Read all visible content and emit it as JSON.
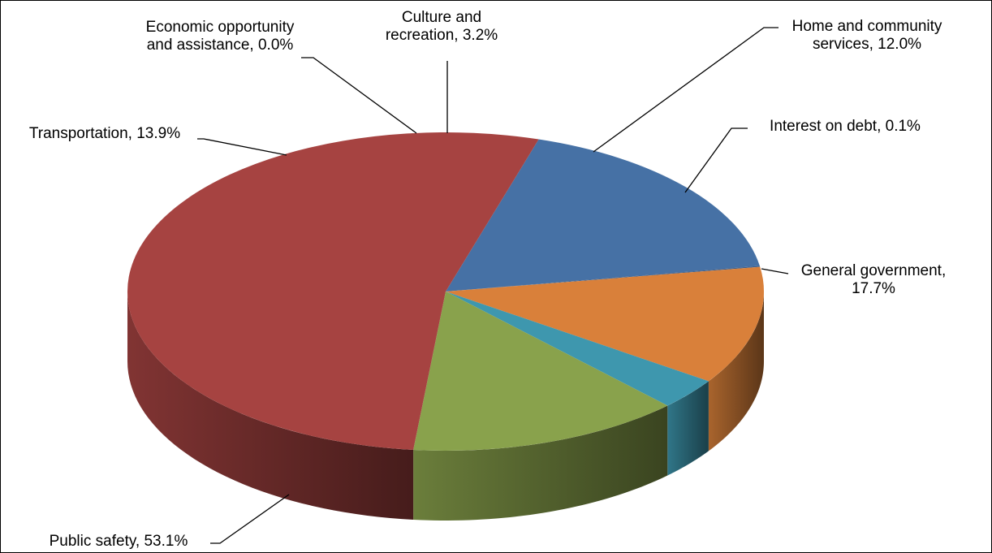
{
  "chart_data": {
    "type": "pie",
    "title": "",
    "categories": [
      "General government",
      "Interest on debt",
      "Home and community services",
      "Culture and recreation",
      "Economic opportunity and assistance",
      "Transportation",
      "Public safety"
    ],
    "values": [
      17.7,
      0.1,
      12.0,
      3.2,
      0.0,
      13.9,
      53.1
    ],
    "units": "%",
    "labels": [
      "General government, 17.7%",
      "Interest on debt, 0.1%",
      "Home and community services, 12.0%",
      "Culture and recreation, 3.2%",
      "Economic opportunity and assistance, 0.0%",
      "Transportation, 13.9%",
      "Public safety, 53.1%"
    ],
    "colors": [
      "#4671A5",
      "#3E5F8C",
      "#D9803A",
      "#3E97AE",
      "#6E8F3E",
      "#89A24C",
      "#A64341"
    ],
    "legend": "none",
    "style": "3d-pie"
  }
}
